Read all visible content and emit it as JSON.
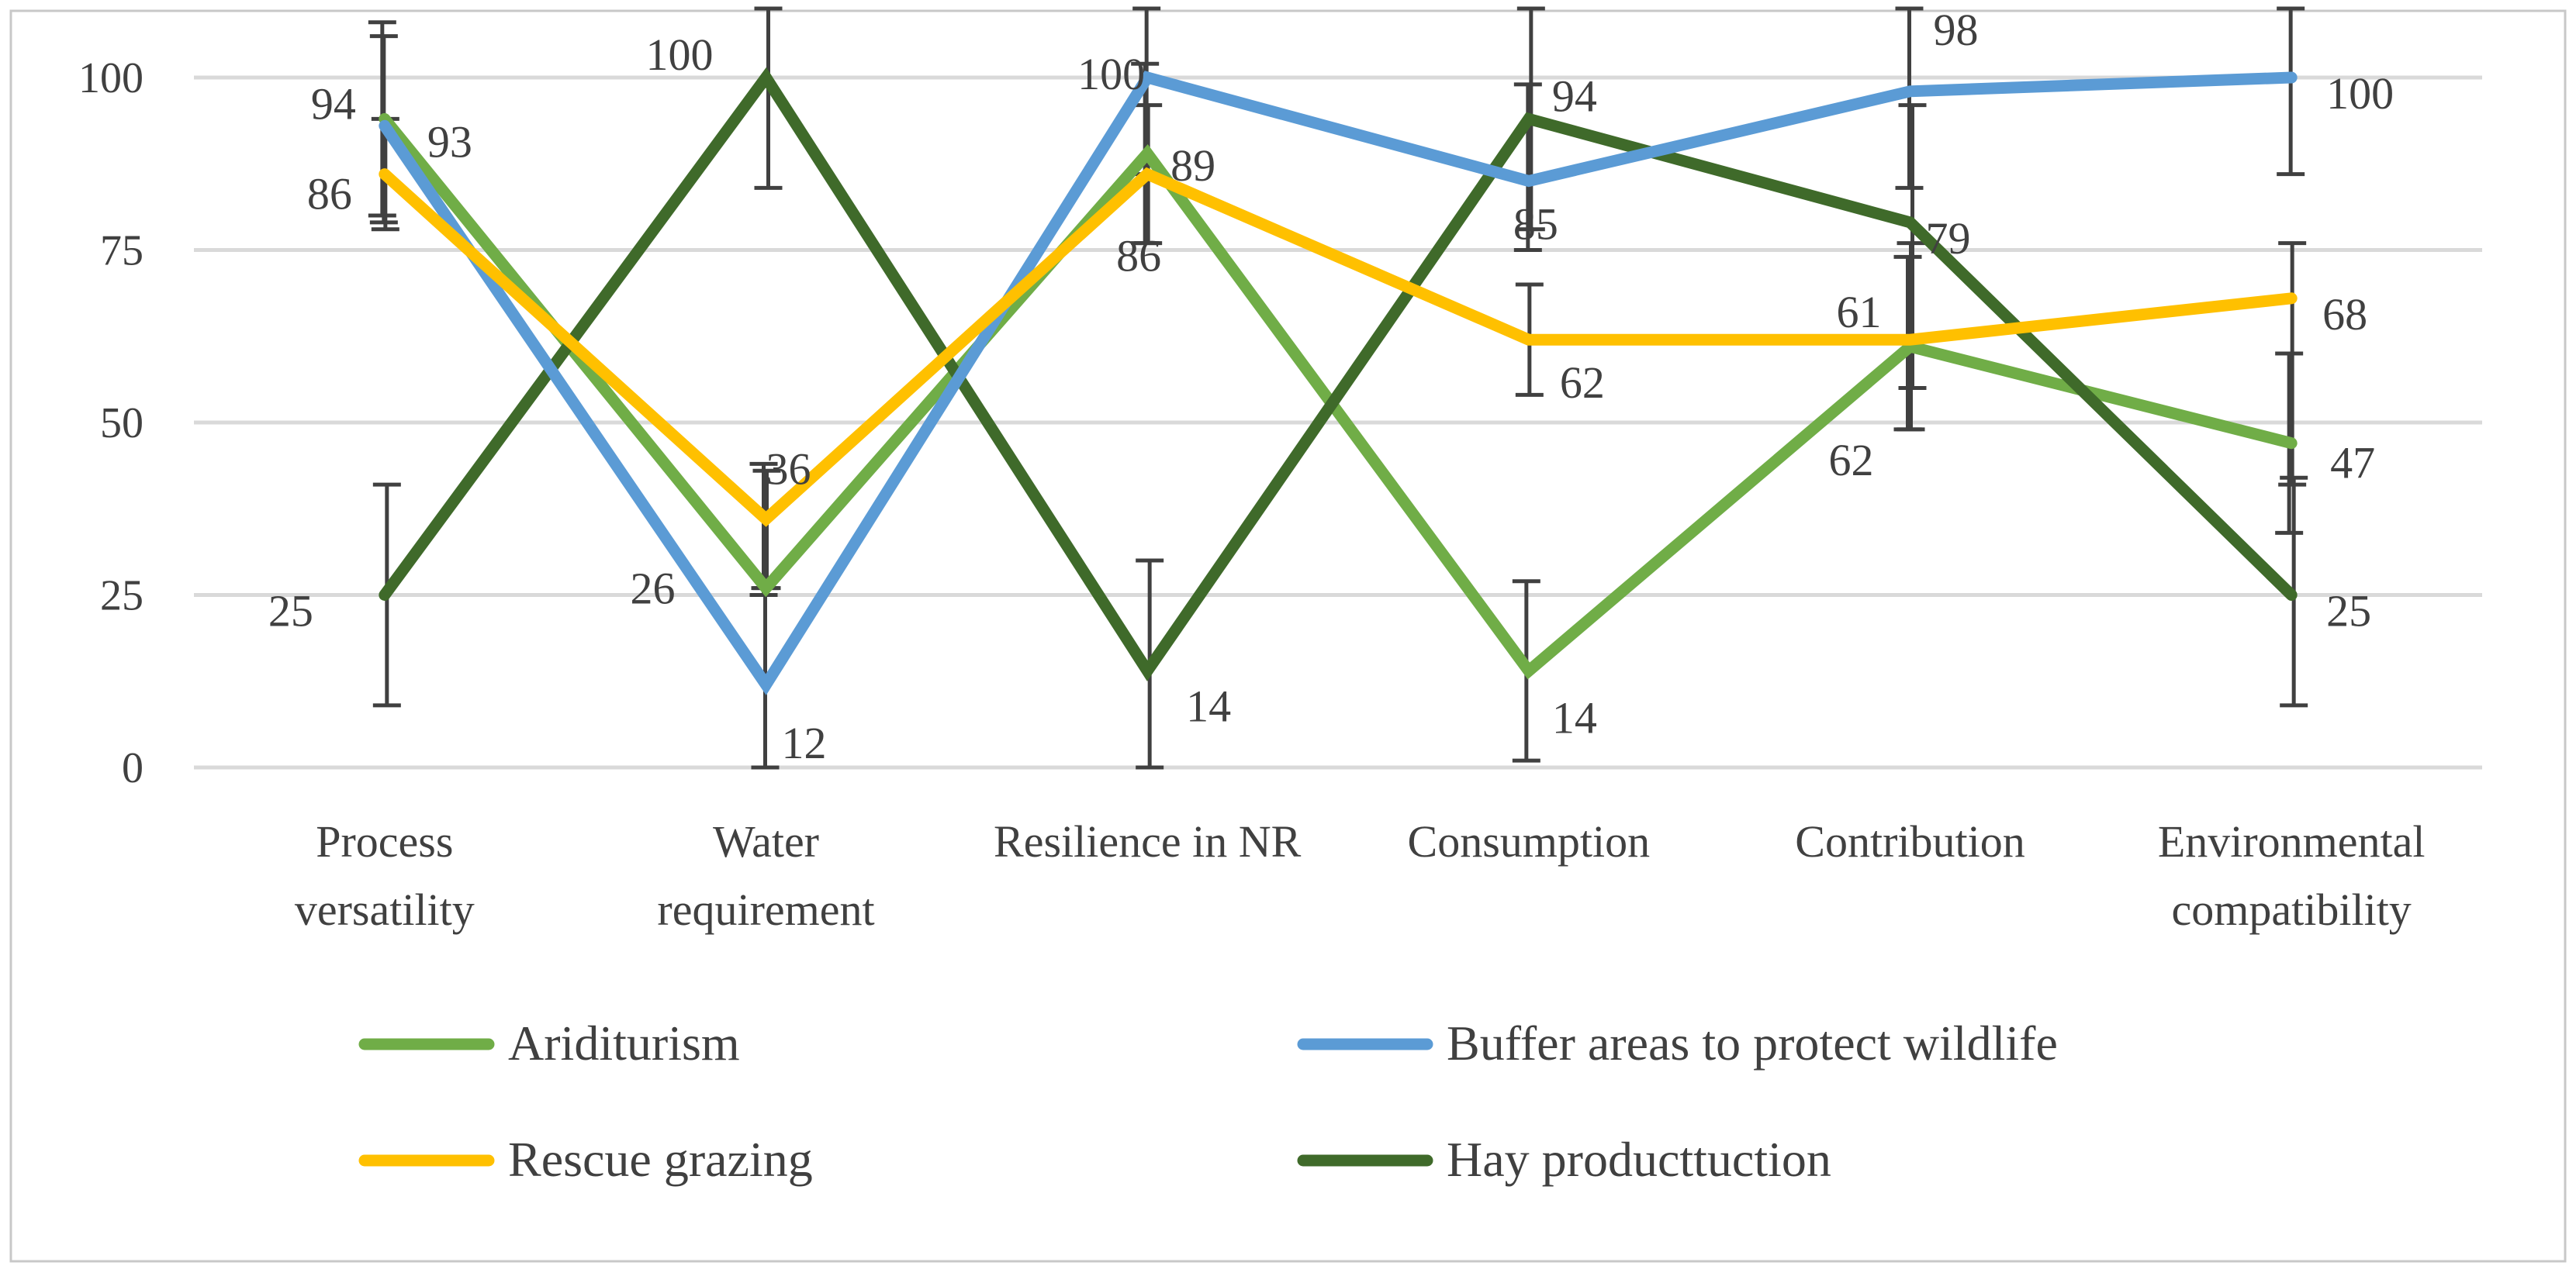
{
  "chart_data": {
    "type": "line",
    "title": "",
    "xlabel": "",
    "ylabel": "",
    "ylim": [
      0,
      100
    ],
    "yticks": [
      0,
      25,
      50,
      75,
      100
    ],
    "categories": [
      [
        "Process",
        "versatility"
      ],
      [
        "Water",
        "requirement"
      ],
      [
        "Resilience in NR"
      ],
      [
        "Consumption"
      ],
      [
        "Contribution"
      ],
      [
        "Environmental",
        "compatibility"
      ]
    ],
    "series": [
      {
        "name": "Ariditurism",
        "color": "#70ad47",
        "values": [
          94,
          26,
          89,
          14,
          61,
          47
        ],
        "labels": [
          "94",
          "26",
          "89",
          "14",
          "61",
          "47"
        ]
      },
      {
        "name": "Buffer areas to protect wildlife",
        "color": "#5b9bd5",
        "values": [
          93,
          12,
          100,
          85,
          98,
          100
        ],
        "labels": [
          "93",
          "12",
          "100",
          "85",
          "98",
          "100"
        ]
      },
      {
        "name": "Rescue grazing",
        "color": "#ffc000",
        "values": [
          86,
          36,
          86,
          62,
          62,
          68
        ],
        "labels": [
          "86",
          "36",
          "86",
          "62",
          "62",
          "68"
        ]
      },
      {
        "name": "Hay producttuction",
        "color": "#3f6a2a",
        "values": [
          25,
          100,
          14,
          94,
          79,
          25
        ],
        "labels": [
          "25",
          "100",
          "14",
          "94",
          "79",
          "25"
        ]
      }
    ],
    "error_bars": [
      [
        [
          80,
          108
        ],
        [
          25,
          44
        ],
        [
          76,
          102
        ],
        [
          1,
          27
        ],
        [
          49,
          74
        ],
        [
          34,
          60
        ]
      ],
      [
        [
          79,
          106
        ],
        [
          0,
          26
        ],
        [
          86,
          110
        ],
        [
          75,
          99
        ],
        [
          84,
          110
        ],
        [
          86,
          110
        ]
      ],
      [
        [
          78,
          94
        ],
        [
          26,
          43
        ],
        [
          76,
          96
        ],
        [
          54,
          70
        ],
        [
          49,
          76
        ],
        [
          41,
          76
        ]
      ],
      [
        [
          9,
          41
        ],
        [
          84,
          110
        ],
        [
          0,
          30
        ],
        [
          78,
          110
        ],
        [
          55,
          96
        ],
        [
          9,
          42
        ]
      ]
    ],
    "legend": {
      "position": "bottom",
      "entries": [
        "Ariditurism",
        "Buffer areas to protect wildlife",
        "Rescue grazing",
        "Hay producttuction"
      ]
    },
    "grid": true
  }
}
